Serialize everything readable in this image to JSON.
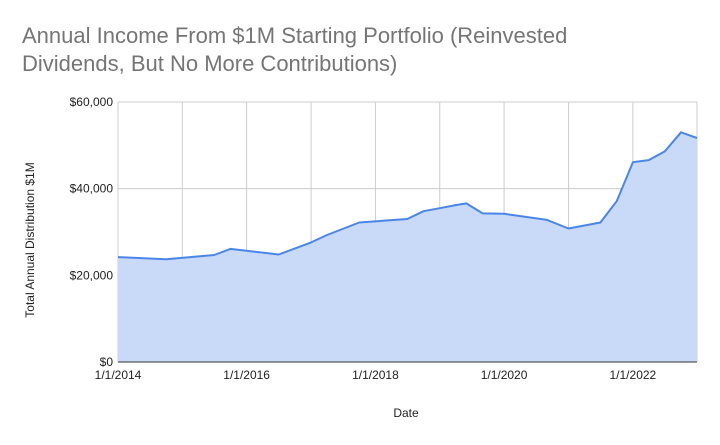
{
  "chart_data": {
    "type": "area",
    "title_line1": "Annual Income From $1M Starting Portfolio (Reinvested",
    "title_line2": "Dividends, But No More Contributions)",
    "xlabel": "Date",
    "ylabel": "Total Annual Distribution $1M",
    "ylim": [
      0,
      60000
    ],
    "yticks": [
      {
        "value": 0,
        "label": "$0"
      },
      {
        "value": 20000,
        "label": "$20,000"
      },
      {
        "value": 40000,
        "label": "$40,000"
      },
      {
        "value": 60000,
        "label": "$60,000"
      }
    ],
    "xlim": [
      "2014-01-01",
      "2022-12-31"
    ],
    "xticks": [
      {
        "date": "2014-01-01",
        "label": "1/1/2014"
      },
      {
        "date": "2016-01-01",
        "label": "1/1/2016"
      },
      {
        "date": "2018-01-01",
        "label": "1/1/2018"
      },
      {
        "date": "2020-01-01",
        "label": "1/1/2020"
      },
      {
        "date": "2022-01-01",
        "label": "1/1/2022"
      }
    ],
    "x_gridlines": [
      "2014-01-01",
      "2015-01-01",
      "2016-01-01",
      "2017-01-01",
      "2018-01-01",
      "2019-01-01",
      "2020-01-01",
      "2021-01-01",
      "2022-01-01"
    ],
    "grid": true,
    "line_color": "#4a86e8",
    "fill_color": "#c9daf8",
    "grid_color": "#cccccc",
    "series": [
      {
        "x": [
          "2014-01-01",
          "2014-10-01",
          "2015-07-01",
          "2015-10-01",
          "2016-07-01",
          "2017-01-01",
          "2017-04-01",
          "2017-10-01",
          "2018-07-01",
          "2018-10-01",
          "2019-01-01",
          "2019-04-01",
          "2019-06-01",
          "2019-09-01",
          "2020-01-01",
          "2020-09-01",
          "2021-01-01",
          "2021-07-01",
          "2021-10-01",
          "2022-01-01",
          "2022-04-01",
          "2022-07-01",
          "2022-10-01",
          "2022-12-31"
        ],
        "values": [
          24200,
          23700,
          24700,
          26100,
          24800,
          27600,
          29300,
          32200,
          33000,
          34800,
          35500,
          36200,
          36600,
          34300,
          34200,
          32800,
          30800,
          32200,
          37100,
          46100,
          46600,
          48600,
          53000,
          51700
        ]
      }
    ]
  }
}
